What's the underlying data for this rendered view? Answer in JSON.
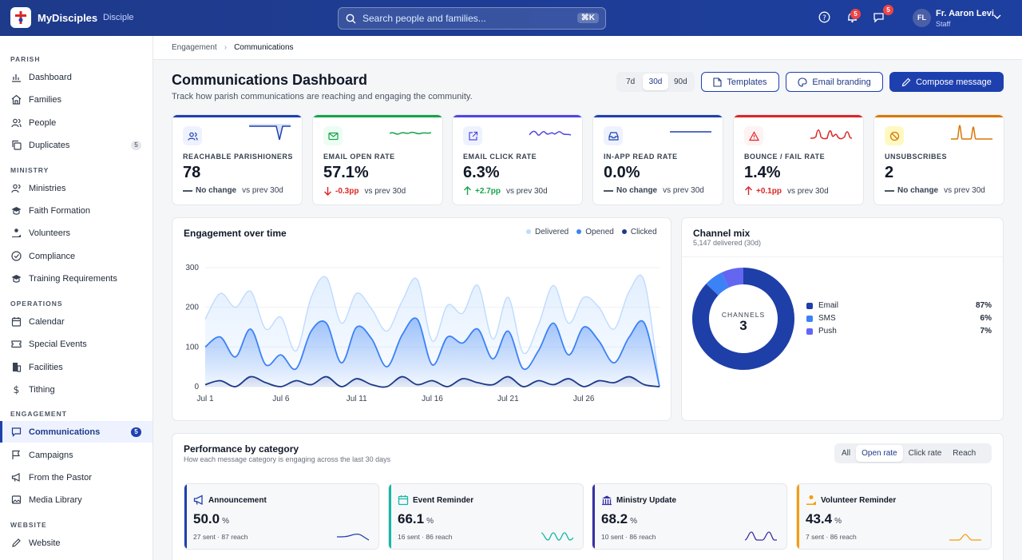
{
  "app": {
    "name": "MyDisciples",
    "subtitle": "Disciple"
  },
  "search": {
    "placeholder": "Search people and families...",
    "shortcut": "⌘K"
  },
  "notifications": {
    "bell_count": "5",
    "chat_count": "5"
  },
  "user": {
    "initials": "FL",
    "name": "Fr. Aaron Levi",
    "role": "Staff"
  },
  "sidebar": {
    "sections": [
      "PARISH",
      "MINISTRY",
      "OPERATIONS",
      "ENGAGEMENT",
      "WEBSITE"
    ],
    "parish": [
      {
        "label": "Dashboard"
      },
      {
        "label": "Families"
      },
      {
        "label": "People"
      },
      {
        "label": "Duplicates",
        "count": "5"
      }
    ],
    "ministry": [
      {
        "label": "Ministries"
      },
      {
        "label": "Faith Formation"
      },
      {
        "label": "Volunteers"
      },
      {
        "label": "Compliance"
      },
      {
        "label": "Training Requirements"
      }
    ],
    "operations": [
      {
        "label": "Calendar"
      },
      {
        "label": "Special Events"
      },
      {
        "label": "Facilities"
      },
      {
        "label": "Tithing"
      }
    ],
    "engagement": [
      {
        "label": "Communications",
        "count": "5"
      },
      {
        "label": "Campaigns"
      },
      {
        "label": "From the Pastor"
      },
      {
        "label": "Media Library"
      }
    ],
    "website": [
      {
        "label": "Website"
      }
    ]
  },
  "breadcrumb": [
    "Engagement",
    "Communications"
  ],
  "page": {
    "title": "Communications Dashboard",
    "subtitle": "Track how parish communications are reaching and engaging the community."
  },
  "range": {
    "options": [
      "7d",
      "30d",
      "90d"
    ],
    "selected": "30d"
  },
  "actions": {
    "templates": "Templates",
    "branding": "Email branding",
    "compose": "Compose message"
  },
  "kpis": [
    {
      "label": "REACHABLE PARISHIONERS",
      "value": "78",
      "delta": "No change",
      "compare": "vs prev 30d",
      "trend": "flat",
      "color": "#1e40af",
      "icon": "users-icon"
    },
    {
      "label": "EMAIL OPEN RATE",
      "value": "57.1%",
      "delta": "-0.3pp",
      "compare": "vs prev 30d",
      "trend": "down",
      "color": "#16a34a",
      "icon": "mail-icon"
    },
    {
      "label": "EMAIL CLICK RATE",
      "value": "6.3%",
      "delta": "+2.7pp",
      "compare": "vs prev 30d",
      "trend": "up",
      "color": "#4f46e5",
      "icon": "external-link-icon"
    },
    {
      "label": "IN-APP READ RATE",
      "value": "0.0%",
      "delta": "No change",
      "compare": "vs prev 30d",
      "trend": "flat",
      "color": "#1e40af",
      "icon": "inbox-icon"
    },
    {
      "label": "BOUNCE / FAIL RATE",
      "value": "1.4%",
      "delta": "+0.1pp",
      "compare": "vs prev 30d",
      "trend": "up-bad",
      "color": "#dc2626",
      "icon": "alert-triangle-icon"
    },
    {
      "label": "UNSUBSCRIBES",
      "value": "2",
      "delta": "No change",
      "compare": "vs prev 30d",
      "trend": "flat",
      "color": "#d97706",
      "icon": "ban-icon"
    }
  ],
  "engagement": {
    "title": "Engagement over time",
    "legend": [
      "Delivered",
      "Opened",
      "Clicked"
    ],
    "chart_data": {
      "type": "area",
      "x": [
        "Jul 1",
        "Jul 2",
        "Jul 3",
        "Jul 4",
        "Jul 5",
        "Jul 6",
        "Jul 7",
        "Jul 8",
        "Jul 9",
        "Jul 10",
        "Jul 11",
        "Jul 12",
        "Jul 13",
        "Jul 14",
        "Jul 15",
        "Jul 16",
        "Jul 17",
        "Jul 18",
        "Jul 19",
        "Jul 20",
        "Jul 21",
        "Jul 22",
        "Jul 23",
        "Jul 24",
        "Jul 25",
        "Jul 26",
        "Jul 27",
        "Jul 28",
        "Jul 29",
        "Jul 30",
        "Jul 31"
      ],
      "ticks": [
        "Jul 1",
        "Jul 6",
        "Jul 11",
        "Jul 16",
        "Jul 21",
        "Jul 26"
      ],
      "y_ticks": [
        0,
        100,
        200,
        300
      ],
      "ylim": [
        0,
        320
      ],
      "series": [
        {
          "name": "Delivered",
          "color": "#bfdbfe",
          "values": [
            170,
            235,
            200,
            240,
            145,
            175,
            90,
            225,
            275,
            160,
            235,
            195,
            140,
            215,
            270,
            115,
            205,
            185,
            255,
            120,
            225,
            85,
            155,
            255,
            160,
            225,
            200,
            145,
            240,
            265,
            0
          ]
        },
        {
          "name": "Opened",
          "color": "#3b82f6",
          "values": [
            100,
            125,
            75,
            145,
            55,
            80,
            45,
            140,
            160,
            60,
            150,
            120,
            50,
            130,
            170,
            55,
            125,
            110,
            145,
            70,
            140,
            45,
            90,
            160,
            80,
            150,
            115,
            60,
            125,
            160,
            0
          ]
        },
        {
          "name": "Clicked",
          "color": "#1e3a8a",
          "values": [
            5,
            15,
            0,
            25,
            10,
            0,
            15,
            5,
            25,
            0,
            20,
            5,
            0,
            25,
            5,
            15,
            0,
            20,
            10,
            5,
            25,
            0,
            15,
            5,
            20,
            0,
            15,
            10,
            25,
            5,
            0
          ]
        }
      ]
    }
  },
  "channel_mix": {
    "title": "Channel mix",
    "subtitle": "5,147 delivered (30d)",
    "center_label": "CHANNELS",
    "center_value": "3",
    "chart_data": {
      "type": "pie",
      "labels": [
        "Email",
        "SMS",
        "Push"
      ],
      "values": [
        87,
        6,
        7
      ],
      "display": [
        "87%",
        "6%",
        "7%"
      ],
      "colors": [
        "#1e3fa8",
        "#3b82f6",
        "#6366f1"
      ]
    }
  },
  "performance": {
    "title": "Performance by category",
    "subtitle": "How each message category is engaging across the last 30 days",
    "tabs": [
      "All",
      "Open rate",
      "Click rate",
      "Reach"
    ],
    "selected_tab": "Open rate",
    "cards": [
      {
        "name": "Announcement",
        "value": "50.0",
        "unit": "%",
        "meta": "27 sent · 87 reach",
        "color": "#1e40af",
        "icon": "megaphone-icon"
      },
      {
        "name": "Event Reminder",
        "value": "66.1",
        "unit": "%",
        "meta": "16 sent · 86 reach",
        "color": "#14b8a6",
        "icon": "calendar-icon"
      },
      {
        "name": "Ministry Update",
        "value": "68.2",
        "unit": "%",
        "meta": "10 sent · 86 reach",
        "color": "#3730a3",
        "icon": "building-icon"
      },
      {
        "name": "Volunteer Reminder",
        "value": "43.4",
        "unit": "%",
        "meta": "7 sent · 86 reach",
        "color": "#f59e0b",
        "icon": "volunteer-icon"
      }
    ]
  }
}
